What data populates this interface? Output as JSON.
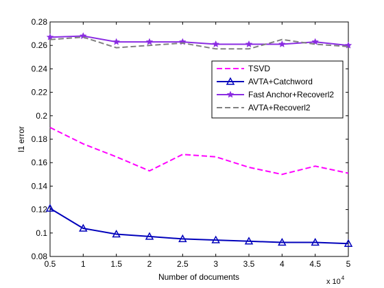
{
  "chart_data": {
    "type": "line",
    "title": "",
    "xlabel": "Number of documents",
    "ylabel": "l1 error",
    "x_multiplier_label": "x 10",
    "x_multiplier_exp": "4",
    "xlim": [
      0.5,
      5
    ],
    "ylim": [
      0.08,
      0.28
    ],
    "xticks": [
      "0.5",
      "1",
      "1.5",
      "2",
      "2.5",
      "3",
      "3.5",
      "4",
      "4.5",
      "5"
    ],
    "yticks": [
      "0.08",
      "0.1",
      "0.12",
      "0.14",
      "0.16",
      "0.18",
      "0.2",
      "0.22",
      "0.24",
      "0.26",
      "0.28"
    ],
    "grid": false,
    "legend_position": "upper-right",
    "x": [
      0.5,
      1,
      1.5,
      2,
      2.5,
      3,
      3.5,
      4,
      4.5,
      5
    ],
    "series": [
      {
        "name": "TSVD",
        "color": "#ff00ff",
        "dash": "dashed",
        "marker": "none",
        "values": [
          0.19,
          0.176,
          0.165,
          0.153,
          0.167,
          0.165,
          0.156,
          0.15,
          0.157,
          0.151
        ]
      },
      {
        "name": "AVTA+Catchword",
        "color": "#0000bb",
        "dash": "solid",
        "marker": "triangle",
        "values": [
          0.121,
          0.104,
          0.099,
          0.097,
          0.095,
          0.094,
          0.093,
          0.092,
          0.092,
          0.091
        ]
      },
      {
        "name": "Fast Anchor+Recoverl2",
        "color": "#8a2be2",
        "dash": "solid",
        "marker": "star",
        "values": [
          0.267,
          0.268,
          0.263,
          0.263,
          0.263,
          0.261,
          0.261,
          0.261,
          0.263,
          0.26
        ]
      },
      {
        "name": "AVTA+Recoverl2",
        "color": "#808080",
        "dash": "dashed",
        "marker": "none",
        "values": [
          0.265,
          0.267,
          0.258,
          0.26,
          0.262,
          0.257,
          0.257,
          0.265,
          0.261,
          0.259
        ]
      }
    ]
  }
}
